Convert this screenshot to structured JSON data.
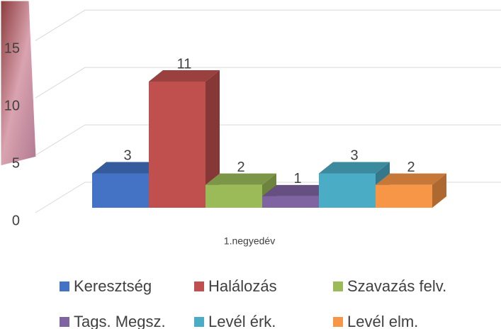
{
  "chart_data": {
    "type": "bar",
    "categories": [
      "1.negyedév"
    ],
    "series": [
      {
        "name": "Keresztség",
        "color": "#4472c4",
        "values": [
          3
        ]
      },
      {
        "name": "Halálozás",
        "color": "#c0504d",
        "values": [
          11
        ]
      },
      {
        "name": "Szavazás felv.",
        "color": "#9bbb59",
        "values": [
          2
        ]
      },
      {
        "name": "Tags. Megsz.",
        "color": "#8064a2",
        "values": [
          1
        ]
      },
      {
        "name": "Levél érk.",
        "color": "#4bacc6",
        "values": [
          3
        ]
      },
      {
        "name": "Levél elm.",
        "color": "#f79646",
        "values": [
          2
        ]
      }
    ],
    "ylim": [
      0,
      15
    ],
    "yticks": [
      0,
      5,
      10,
      15
    ],
    "grid": true,
    "legend": "bottom"
  }
}
